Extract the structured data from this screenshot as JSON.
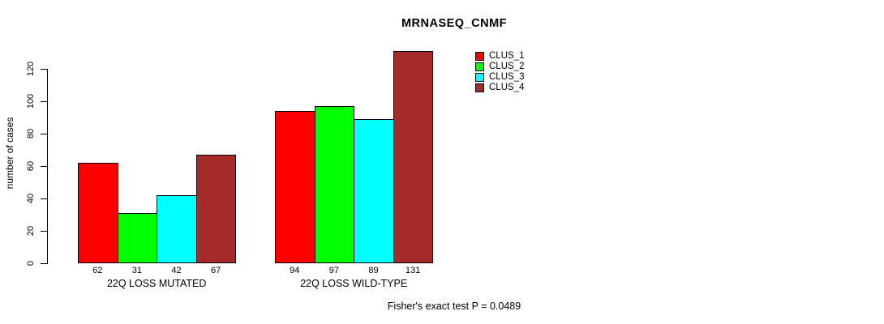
{
  "title": "MRNASEQ_CNMF",
  "ylabel": "number of cases",
  "stat_note": "Fisher's exact test P = 0.0489",
  "legend": {
    "entries": [
      {
        "label": "CLUS_1",
        "color": "#FF0000"
      },
      {
        "label": "CLUS_2",
        "color": "#00FF00"
      },
      {
        "label": "CLUS_3",
        "color": "#00FFFF"
      },
      {
        "label": "CLUS_4",
        "color": "#A52A2A"
      }
    ]
  },
  "chart_data": {
    "type": "bar",
    "title": "MRNASEQ_CNMF",
    "xlabel": "",
    "ylabel": "number of cases",
    "categories": [
      "22Q LOSS MUTATED",
      "22Q LOSS WILD-TYPE"
    ],
    "series": [
      {
        "name": "CLUS_1",
        "color": "#FF0000",
        "values": [
          62,
          94
        ]
      },
      {
        "name": "CLUS_2",
        "color": "#00FF00",
        "values": [
          31,
          97
        ]
      },
      {
        "name": "CLUS_3",
        "color": "#00FFFF",
        "values": [
          42,
          89
        ]
      },
      {
        "name": "CLUS_4",
        "color": "#A52A2A",
        "values": [
          67,
          131
        ]
      }
    ],
    "yticks": [
      0,
      20,
      40,
      60,
      80,
      100,
      120
    ],
    "ylim": [
      0,
      131
    ],
    "axis_range_drawn": [
      0,
      120
    ],
    "bar_value_labels": true,
    "grid": false,
    "legend_position": "top-right",
    "annotation": "Fisher's exact test P = 0.0489"
  }
}
